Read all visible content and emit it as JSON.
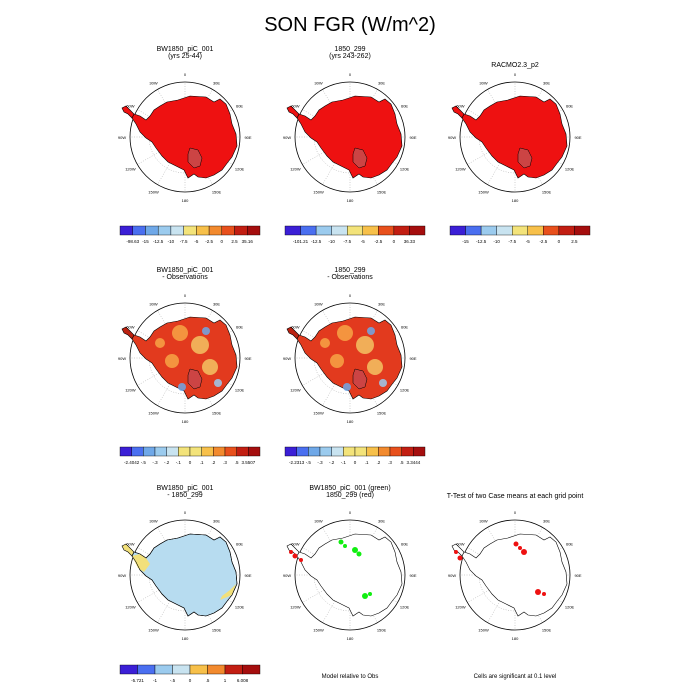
{
  "title": "SON FGR (W/m^2)",
  "colors": {
    "red": "#ee1111",
    "coast": "#000000",
    "sig_green": "#11ee11",
    "sig_red": "#ee1111",
    "anom_light_blue": "#b7dcf0",
    "anom_yellow": "#f2e07a"
  },
  "panels": [
    {
      "id": "p1",
      "title_lines": [
        "BW1850_piC_001",
        "(yrs 25-44)"
      ],
      "fill": "solid_red"
    },
    {
      "id": "p2",
      "title_lines": [
        "1850_299",
        "(yrs 243-262)"
      ],
      "fill": "solid_red"
    },
    {
      "id": "p3",
      "title_lines": [
        "RACMO2.3_p2"
      ],
      "fill": "solid_red"
    },
    {
      "id": "p4",
      "title_lines": [
        "BW1850_piC_001",
        "- Observations"
      ],
      "fill": "diff_mixed"
    },
    {
      "id": "p5",
      "title_lines": [
        "1850_299",
        "- Observations"
      ],
      "fill": "diff_mixed"
    },
    {
      "id": "p6",
      "title_lines": [
        "BW1850_piC_001",
        "- 1850_299"
      ],
      "fill": "anom_blue"
    },
    {
      "id": "p7",
      "title_lines": [
        "BW1850_piC_001 (green)",
        "1850_299 (red)"
      ],
      "fill": "sig_green_red"
    },
    {
      "id": "p8",
      "title_lines": [
        "T-Test of two Case means at each grid point"
      ],
      "fill": "sig_red"
    }
  ],
  "map_labels": {
    "top": "0",
    "upper_left": "30W",
    "left_upper": "60W",
    "left": "90W",
    "left_lower": "120W",
    "lower_left": "150W",
    "bottom": "180",
    "lower_right": "150E",
    "right_lower": "120E",
    "right": "90E",
    "right_upper": "60E",
    "upper_right": "30E"
  },
  "colorbars": [
    {
      "id": "cb1",
      "labels": [
        "-98.63",
        "-15",
        "-12.5",
        "-10",
        "-7.5",
        "-5",
        "-2.5",
        "0",
        "2.5",
        "35.16"
      ]
    },
    {
      "id": "cb2",
      "labels": [
        "-101.21",
        "-12.5",
        "-10",
        "-7.5",
        "-5",
        "-2.5",
        "0",
        "36.33"
      ]
    },
    {
      "id": "cb3",
      "labels": [
        "-15",
        "-12.5",
        "-10",
        "-7.5",
        "-5",
        "-2.5",
        "0",
        "2.5"
      ]
    },
    {
      "id": "cb4",
      "labels": [
        "-2.4042",
        "-.5",
        "-.3",
        "-.2",
        "-.1",
        "0",
        ".1",
        ".2",
        ".3",
        ".5",
        "3.5507"
      ]
    },
    {
      "id": "cb5",
      "labels": [
        "-2.2313",
        "-.5",
        "-.3",
        "-.2",
        "-.1",
        "0",
        ".1",
        ".2",
        ".3",
        ".5",
        "3.3444"
      ]
    },
    {
      "id": "cb6",
      "labels": [
        "-5.721",
        "-1",
        "-.5",
        "0",
        ".5",
        "1",
        "6.008"
      ]
    }
  ],
  "captions": {
    "model_rel": "Model relative to Obs",
    "sig_level": "Cells are significant at 0.1 level"
  }
}
